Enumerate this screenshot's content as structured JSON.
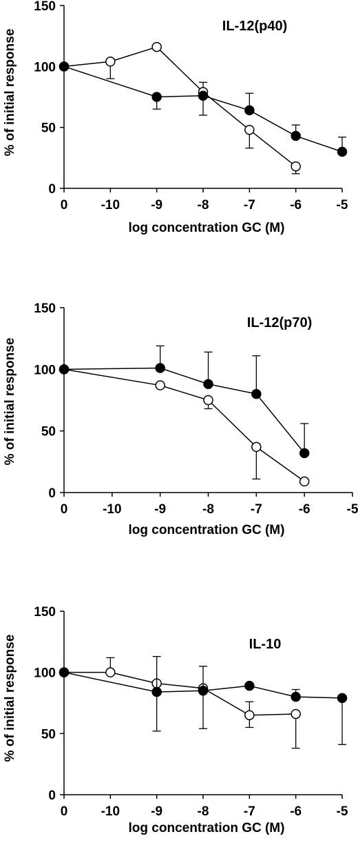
{
  "chart_data": [
    {
      "type": "line",
      "title": "IL-12(p40)",
      "xlabel": "log concentration GC (M)",
      "ylabel": "% of initial response",
      "categories": [
        "0",
        "-10",
        "-9",
        "-8",
        "-7",
        "-6",
        "-5"
      ],
      "ylim": [
        0,
        150
      ],
      "yticks": [
        "0",
        "50",
        "100",
        "150"
      ],
      "series": [
        {
          "marker": "open-circle",
          "values": [
            100,
            104,
            116,
            79,
            48,
            18,
            null
          ],
          "error_up": [
            0,
            0,
            0,
            8,
            0,
            0,
            null
          ],
          "error_down": [
            0,
            14,
            0,
            0,
            15,
            6,
            null
          ]
        },
        {
          "marker": "filled-circle",
          "values": [
            100,
            null,
            75,
            76,
            64,
            43,
            30
          ],
          "error_up": [
            0,
            null,
            0,
            0,
            14,
            9,
            12
          ],
          "error_down": [
            0,
            null,
            10,
            16,
            0,
            0,
            0
          ]
        }
      ]
    },
    {
      "type": "line",
      "title": "IL-12(p70)",
      "xlabel": "log concentration GC (M)",
      "ylabel": "% of initial response",
      "categories": [
        "0",
        "-10",
        "-9",
        "-8",
        "-7",
        "-6",
        "-5"
      ],
      "ylim": [
        0,
        150
      ],
      "yticks": [
        "0",
        "50",
        "100",
        "150"
      ],
      "series": [
        {
          "marker": "open-circle",
          "values": [
            100,
            null,
            87,
            75,
            37,
            9,
            null
          ],
          "error_up": [
            0,
            null,
            0,
            0,
            0,
            0,
            null
          ],
          "error_down": [
            0,
            null,
            0,
            7,
            26,
            0,
            null
          ]
        },
        {
          "marker": "filled-circle",
          "values": [
            100,
            null,
            101,
            88,
            80,
            32,
            null
          ],
          "error_up": [
            0,
            null,
            18,
            26,
            31,
            24,
            null
          ],
          "error_down": [
            0,
            null,
            0,
            0,
            0,
            0,
            null
          ]
        }
      ]
    },
    {
      "type": "line",
      "title": "IL-10",
      "xlabel": "log concentration GC (M)",
      "ylabel": "% of initial response",
      "categories": [
        "0",
        "-10",
        "-9",
        "-8",
        "-7",
        "-6",
        "-5"
      ],
      "ylim": [
        0,
        150
      ],
      "yticks": [
        "0",
        "50",
        "100",
        "150"
      ],
      "series": [
        {
          "marker": "open-circle",
          "values": [
            100,
            100,
            91,
            87,
            65,
            66,
            null
          ],
          "error_up": [
            0,
            12,
            0,
            0,
            11,
            0,
            null
          ],
          "error_down": [
            0,
            0,
            0,
            0,
            10,
            28,
            null
          ]
        },
        {
          "marker": "filled-circle",
          "values": [
            100,
            null,
            84,
            85,
            89,
            80,
            79
          ],
          "error_up": [
            0,
            null,
            29,
            20,
            0,
            6,
            0
          ],
          "error_down": [
            0,
            null,
            32,
            31,
            0,
            0,
            38
          ]
        }
      ]
    }
  ]
}
